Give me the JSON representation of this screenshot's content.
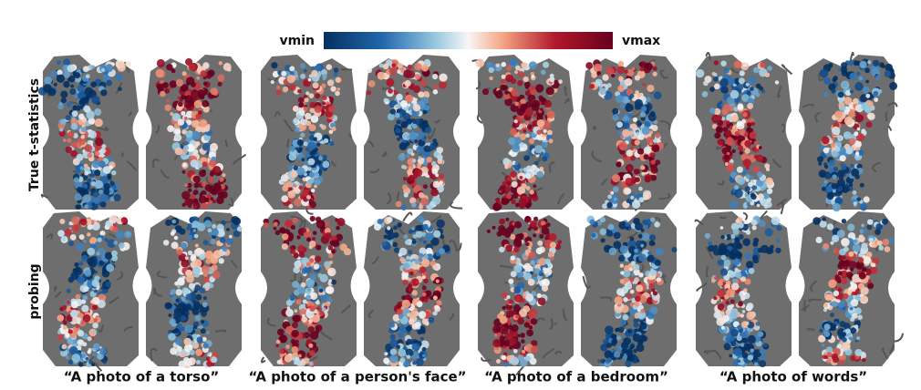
{
  "colorbar": {
    "min_label": "vmin",
    "max_label": "vmax"
  },
  "row_labels": [
    "True t-statistics",
    "probing"
  ],
  "captions": [
    "“A photo of a torso”",
    "“A photo of a person's face”",
    "“A photo of a bedroom”",
    "“A photo of words”"
  ]
}
